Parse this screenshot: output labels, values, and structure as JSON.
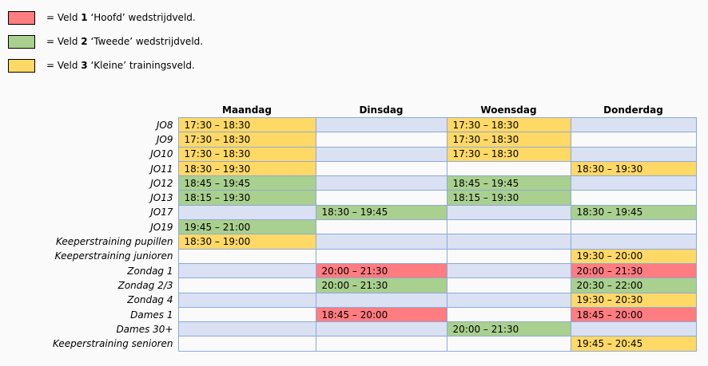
{
  "legend": [
    {
      "color": "#FF7C80",
      "prefix": "= Veld ",
      "num": "1",
      "suffix": " ‘Hoofd’ wedstrijdveld."
    },
    {
      "color": "#A9D08E",
      "prefix": "= Veld ",
      "num": "2",
      "suffix": " ‘Tweede’ wedstrijdveld."
    },
    {
      "color": "#FFD966",
      "prefix": "= Veld ",
      "num": "3",
      "suffix": " ‘Kleine’ trainingsveld."
    }
  ],
  "colors": {
    "R": "#FF7C80",
    "G": "#A9D08E",
    "Y": "#FFD966",
    "band": "#D9E1F2",
    "border": "#8EA9DB"
  },
  "days": [
    "Maandag",
    "Dinsdag",
    "Woensdag",
    "Donderdag"
  ],
  "rows": [
    {
      "team": "JO8",
      "cells": [
        {
          "t": "17:30 – 18:30",
          "f": "Y"
        },
        {},
        {
          "t": "17:30 – 18:30",
          "f": "Y"
        },
        {}
      ]
    },
    {
      "team": "JO9",
      "cells": [
        {
          "t": "17:30 – 18:30",
          "f": "Y"
        },
        {},
        {
          "t": "17:30 – 18:30",
          "f": "Y"
        },
        {}
      ]
    },
    {
      "team": "JO10",
      "cells": [
        {
          "t": "17:30 – 18:30",
          "f": "Y"
        },
        {},
        {
          "t": "17:30 – 18:30",
          "f": "Y"
        },
        {}
      ]
    },
    {
      "team": "JO11",
      "cells": [
        {
          "t": "18:30 – 19:30",
          "f": "Y"
        },
        {},
        {},
        {
          "t": "18:30 – 19:30",
          "f": "Y"
        }
      ]
    },
    {
      "team": "JO12",
      "cells": [
        {
          "t": "18:45 – 19:45",
          "f": "G"
        },
        {},
        {
          "t": "18:45 – 19:45",
          "f": "G"
        },
        {}
      ]
    },
    {
      "team": "JO13",
      "cells": [
        {
          "t": "18:15 – 19:30",
          "f": "G"
        },
        {},
        {
          "t": "18:15 – 19:30",
          "f": "G"
        },
        {}
      ]
    },
    {
      "team": "JO17",
      "cells": [
        {},
        {
          "t": "18:30 – 19:45",
          "f": "G"
        },
        {},
        {
          "t": "18:30 – 19:45",
          "f": "G"
        }
      ]
    },
    {
      "team": "JO19",
      "cells": [
        {
          "t": "19:45 – 21:00",
          "f": "G"
        },
        {},
        {},
        {}
      ]
    },
    {
      "team": "Keeperstraining pupillen",
      "cells": [
        {
          "t": "18:30 – 19:00",
          "f": "Y"
        },
        {},
        {},
        {}
      ]
    },
    {
      "team": "Keeperstraining junioren",
      "cells": [
        {},
        {},
        {},
        {
          "t": "19:30 – 20:00",
          "f": "Y"
        }
      ]
    },
    {
      "team": "Zondag 1",
      "cells": [
        {},
        {
          "t": "20:00 – 21:30",
          "f": "R"
        },
        {},
        {
          "t": "20:00 – 21:30",
          "f": "R"
        }
      ]
    },
    {
      "team": "Zondag 2/3",
      "cells": [
        {},
        {
          "t": "20:00 – 21:30",
          "f": "G"
        },
        {},
        {
          "t": "20:30 – 22:00",
          "f": "G"
        }
      ]
    },
    {
      "team": "Zondag 4",
      "cells": [
        {},
        {},
        {},
        {
          "t": "19:30 – 20:30",
          "f": "Y"
        }
      ]
    },
    {
      "team": "Dames 1",
      "cells": [
        {},
        {
          "t": "18:45 – 20:00",
          "f": "R"
        },
        {},
        {
          "t": "18:45 – 20:00",
          "f": "R"
        }
      ]
    },
    {
      "team": "Dames 30+",
      "cells": [
        {},
        {},
        {
          "t": "20:00 – 21:30",
          "f": "G"
        },
        {}
      ]
    },
    {
      "team": "Keeperstraining senioren",
      "cells": [
        {},
        {},
        {},
        {
          "t": "19:45 – 20:45",
          "f": "Y"
        }
      ]
    }
  ]
}
